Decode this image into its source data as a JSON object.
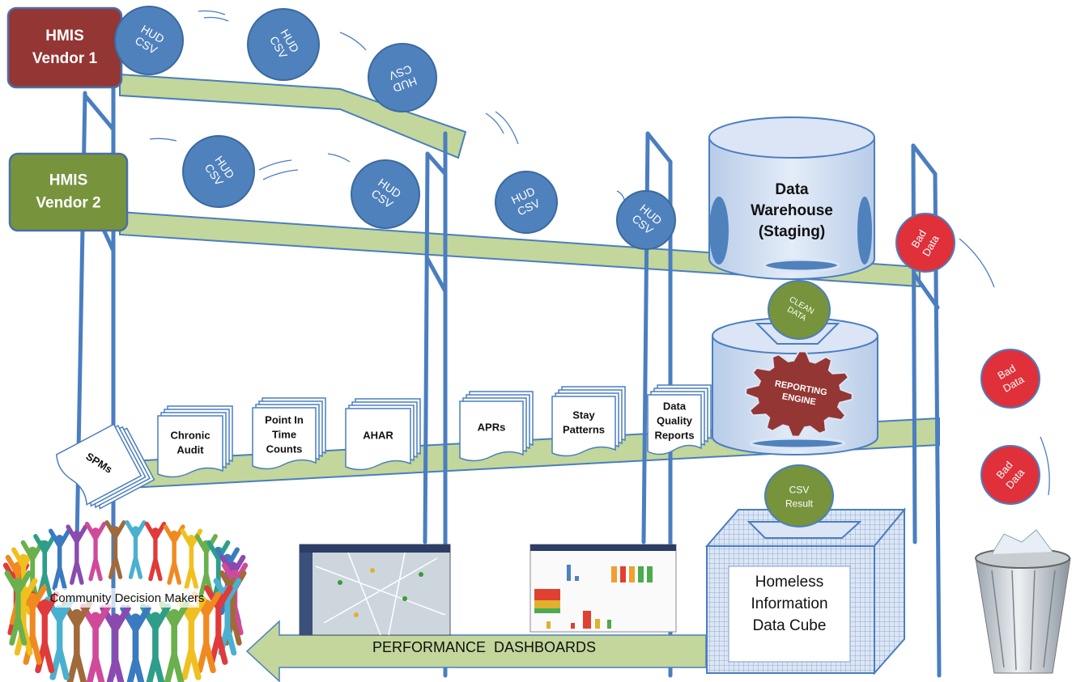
{
  "vendors": [
    {
      "lines": [
        "HMIS",
        "Vendor 1"
      ]
    },
    {
      "lines": [
        "HMIS",
        "Vendor 2"
      ]
    }
  ],
  "hud_balls": [
    {
      "lines": [
        "HUD",
        "CSV"
      ]
    },
    {
      "lines": [
        "HUD",
        "CSV"
      ]
    },
    {
      "lines": [
        "HUD",
        "CSV"
      ]
    },
    {
      "lines": [
        "HUD",
        "CSV"
      ]
    },
    {
      "lines": [
        "HUD",
        "CSV"
      ]
    },
    {
      "lines": [
        "HUD",
        "CSV"
      ]
    },
    {
      "lines": [
        "HUD",
        "CSV"
      ]
    }
  ],
  "warehouse": {
    "lines": [
      "Data",
      "Warehouse",
      "(Staging)"
    ]
  },
  "clean_data": {
    "lines": [
      "CLEAN",
      "DATA"
    ]
  },
  "reporting_engine": {
    "lines": [
      "REPORTING",
      "ENGINE"
    ]
  },
  "csv_result": {
    "lines": [
      "CSV",
      "Result"
    ]
  },
  "bad_data": [
    {
      "lines": [
        "Bad",
        "Data"
      ]
    },
    {
      "lines": [
        "Bad",
        "Data"
      ]
    },
    {
      "lines": [
        "Bad",
        "Data"
      ]
    }
  ],
  "reports": [
    {
      "lines": [
        "SPMs"
      ]
    },
    {
      "lines": [
        "Chronic",
        "Audit"
      ]
    },
    {
      "lines": [
        "Point In",
        "Time",
        "Counts"
      ]
    },
    {
      "lines": [
        "AHAR"
      ]
    },
    {
      "lines": [
        "APRs"
      ]
    },
    {
      "lines": [
        "Stay",
        "Patterns"
      ]
    },
    {
      "lines": [
        "Data",
        "Quality",
        "Reports"
      ]
    }
  ],
  "data_cube": {
    "lines": [
      "Homeless",
      "Information",
      "Data Cube"
    ]
  },
  "dashboards_label": "PERFORMANCE  DASHBOARDS",
  "community": "Community Decision Makers"
}
